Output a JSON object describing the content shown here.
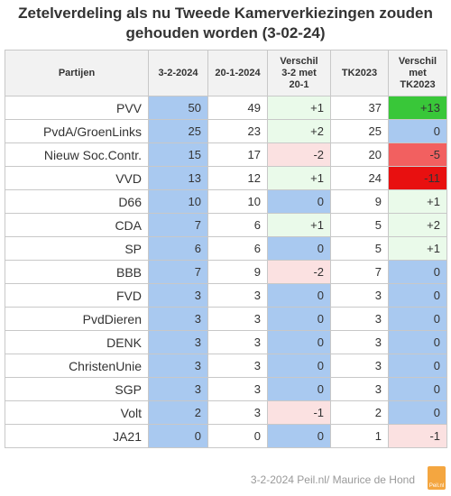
{
  "title_line1": "Zetelverdeling als nu Tweede Kamerverkiezingen zouden",
  "title_line2": "gehouden worden (3-02-24)",
  "headers": [
    "Partijen",
    "3-2-2024",
    "20-1-2024",
    "Verschil 3-2 met 20-1",
    "TK2023",
    "Verschil met TK2023"
  ],
  "rows": [
    {
      "party": "PVV",
      "current": "50",
      "previous": "49",
      "diff": "+1",
      "tk2023": "37",
      "diff_tk": "+13"
    },
    {
      "party": "PvdA/GroenLinks",
      "current": "25",
      "previous": "23",
      "diff": "+2",
      "tk2023": "25",
      "diff_tk": "0"
    },
    {
      "party": "Nieuw Soc.Contr.",
      "current": "15",
      "previous": "17",
      "diff": "-2",
      "tk2023": "20",
      "diff_tk": "-5"
    },
    {
      "party": "VVD",
      "current": "13",
      "previous": "12",
      "diff": "+1",
      "tk2023": "24",
      "diff_tk": "-11"
    },
    {
      "party": "D66",
      "current": "10",
      "previous": "10",
      "diff": "0",
      "tk2023": "9",
      "diff_tk": "+1"
    },
    {
      "party": "CDA",
      "current": "7",
      "previous": "6",
      "diff": "+1",
      "tk2023": "5",
      "diff_tk": "+2"
    },
    {
      "party": "SP",
      "current": "6",
      "previous": "6",
      "diff": "0",
      "tk2023": "5",
      "diff_tk": "+1"
    },
    {
      "party": "BBB",
      "current": "7",
      "previous": "9",
      "diff": "-2",
      "tk2023": "7",
      "diff_tk": "0"
    },
    {
      "party": "FVD",
      "current": "3",
      "previous": "3",
      "diff": "0",
      "tk2023": "3",
      "diff_tk": "0"
    },
    {
      "party": "PvdDieren",
      "current": "3",
      "previous": "3",
      "diff": "0",
      "tk2023": "3",
      "diff_tk": "0"
    },
    {
      "party": "DENK",
      "current": "3",
      "previous": "3",
      "diff": "0",
      "tk2023": "3",
      "diff_tk": "0"
    },
    {
      "party": "ChristenUnie",
      "current": "3",
      "previous": "3",
      "diff": "0",
      "tk2023": "3",
      "diff_tk": "0"
    },
    {
      "party": "SGP",
      "current": "3",
      "previous": "3",
      "diff": "0",
      "tk2023": "3",
      "diff_tk": "0"
    },
    {
      "party": "Volt",
      "current": "2",
      "previous": "3",
      "diff": "-1",
      "tk2023": "2",
      "diff_tk": "0"
    },
    {
      "party": "JA21",
      "current": "0",
      "previous": "0",
      "diff": "0",
      "tk2023": "1",
      "diff_tk": "-1"
    }
  ],
  "colors": {
    "current_col": "#a9c9f0",
    "zero": "#a9c9f0",
    "plus_small": "#eafaea",
    "minus_small": "#fbe1e1",
    "plus_large": "#39c739",
    "minus_medium": "#f26060",
    "minus_large": "#e81010"
  },
  "footer": "3-2-2024 Peil.nl/ Maurice de Hond",
  "logo_text": "Peil.nl"
}
